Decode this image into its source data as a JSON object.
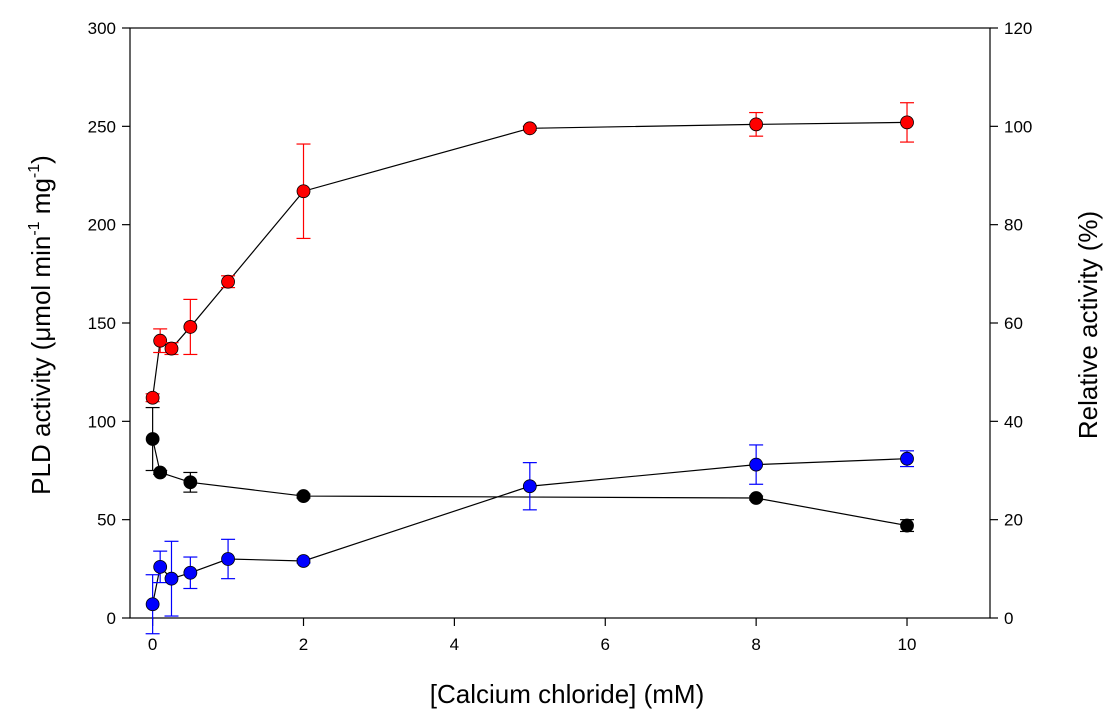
{
  "chart_data": {
    "type": "scatter",
    "title": "",
    "xlabel": "[Calcium chloride] (mM)",
    "ylabel": {
      "prefix": "PLD activity (μmol min",
      "sup1": "-1",
      "middle": " mg",
      "sup2": "-1",
      "suffix": ")"
    },
    "y2label": "Relative activity (%)",
    "xlim": [
      -0.3,
      11.1
    ],
    "ylim": [
      0,
      300
    ],
    "y2lim": [
      0,
      120
    ],
    "xticks": [
      "0",
      "2",
      "4",
      "6",
      "8",
      "10"
    ],
    "yticks": [
      "0",
      "50",
      "100",
      "150",
      "200",
      "250",
      "300"
    ],
    "y2ticks": [
      "0",
      "20",
      "40",
      "60",
      "80",
      "100",
      "120"
    ],
    "grid": false,
    "legend": "none",
    "series": [
      {
        "color": "#ff0000",
        "axis": "left",
        "x": [
          0,
          0.1,
          0.25,
          0.5,
          1,
          2,
          5,
          8,
          10
        ],
        "y": [
          112,
          141,
          137,
          148,
          171,
          217,
          249,
          251,
          252
        ],
        "err": [
          2,
          6,
          3,
          14,
          3,
          24,
          1,
          6,
          10
        ]
      },
      {
        "color": "#000000",
        "axis": "left",
        "x": [
          0,
          0.1,
          0.5,
          2,
          8,
          10
        ],
        "y": [
          91,
          74,
          69,
          62,
          61,
          47
        ],
        "err": [
          16,
          1,
          5,
          1,
          1,
          3
        ]
      },
      {
        "color": "#0000ff",
        "axis": "left",
        "x": [
          0,
          0.1,
          0.25,
          0.5,
          1,
          2,
          5,
          8,
          10
        ],
        "y": [
          7,
          26,
          20,
          23,
          30,
          29,
          67,
          78,
          81
        ],
        "err": [
          15,
          8,
          19,
          8,
          10,
          1,
          12,
          10,
          4
        ]
      }
    ]
  }
}
